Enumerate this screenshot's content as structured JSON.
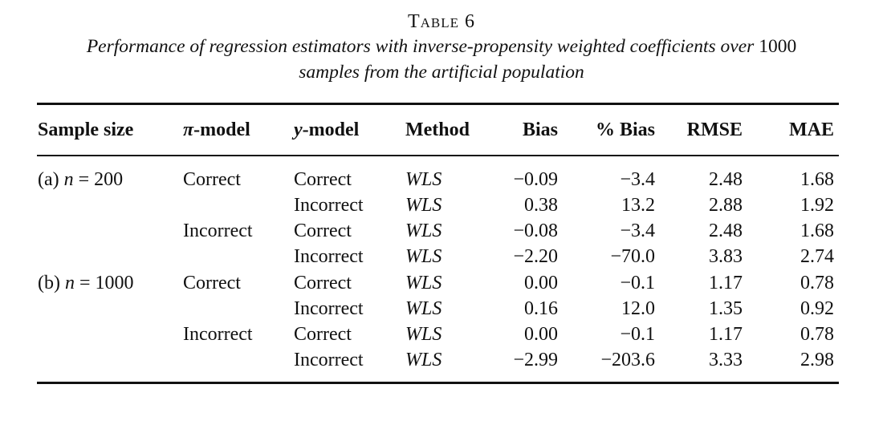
{
  "caption": {
    "label": "Table 6",
    "text_before": "Performance of regression estimators with inverse-propensity weighted coefficients over ",
    "text_number": "1000",
    "text_after": "samples from the artificial population"
  },
  "columns": {
    "sample_size": "Sample size",
    "pi_symbol": "π",
    "pi_suffix": "-model",
    "y_symbol": "y",
    "y_suffix": "-model",
    "method": "Method",
    "bias": "Bias",
    "pct_bias": "% Bias",
    "rmse": "RMSE",
    "mae": "MAE"
  },
  "rows": [
    {
      "size": "(a) ",
      "size_n": "n",
      "size_eq": " = 200",
      "pi": "Correct",
      "y": "Correct",
      "method": "WLS",
      "bias": "−0.09",
      "pct_bias": "−3.4",
      "rmse": "2.48",
      "mae": "1.68"
    },
    {
      "size": "",
      "size_n": "",
      "size_eq": "",
      "pi": "",
      "y": "Incorrect",
      "method": "WLS",
      "bias": "0.38",
      "pct_bias": "13.2",
      "rmse": "2.88",
      "mae": "1.92"
    },
    {
      "size": "",
      "size_n": "",
      "size_eq": "",
      "pi": "Incorrect",
      "y": "Correct",
      "method": "WLS",
      "bias": "−0.08",
      "pct_bias": "−3.4",
      "rmse": "2.48",
      "mae": "1.68"
    },
    {
      "size": "",
      "size_n": "",
      "size_eq": "",
      "pi": "",
      "y": "Incorrect",
      "method": "WLS",
      "bias": "−2.20",
      "pct_bias": "−70.0",
      "rmse": "3.83",
      "mae": "2.74"
    },
    {
      "size": "(b) ",
      "size_n": "n",
      "size_eq": " = 1000",
      "pi": "Correct",
      "y": "Correct",
      "method": "WLS",
      "bias": "0.00",
      "pct_bias": "−0.1",
      "rmse": "1.17",
      "mae": "0.78"
    },
    {
      "size": "",
      "size_n": "",
      "size_eq": "",
      "pi": "",
      "y": "Incorrect",
      "method": "WLS",
      "bias": "0.16",
      "pct_bias": "12.0",
      "rmse": "1.35",
      "mae": "0.92"
    },
    {
      "size": "",
      "size_n": "",
      "size_eq": "",
      "pi": "Incorrect",
      "y": "Correct",
      "method": "WLS",
      "bias": "0.00",
      "pct_bias": "−0.1",
      "rmse": "1.17",
      "mae": "0.78"
    },
    {
      "size": "",
      "size_n": "",
      "size_eq": "",
      "pi": "",
      "y": "Incorrect",
      "method": "WLS",
      "bias": "−2.99",
      "pct_bias": "−203.6",
      "rmse": "3.33",
      "mae": "2.98"
    }
  ]
}
